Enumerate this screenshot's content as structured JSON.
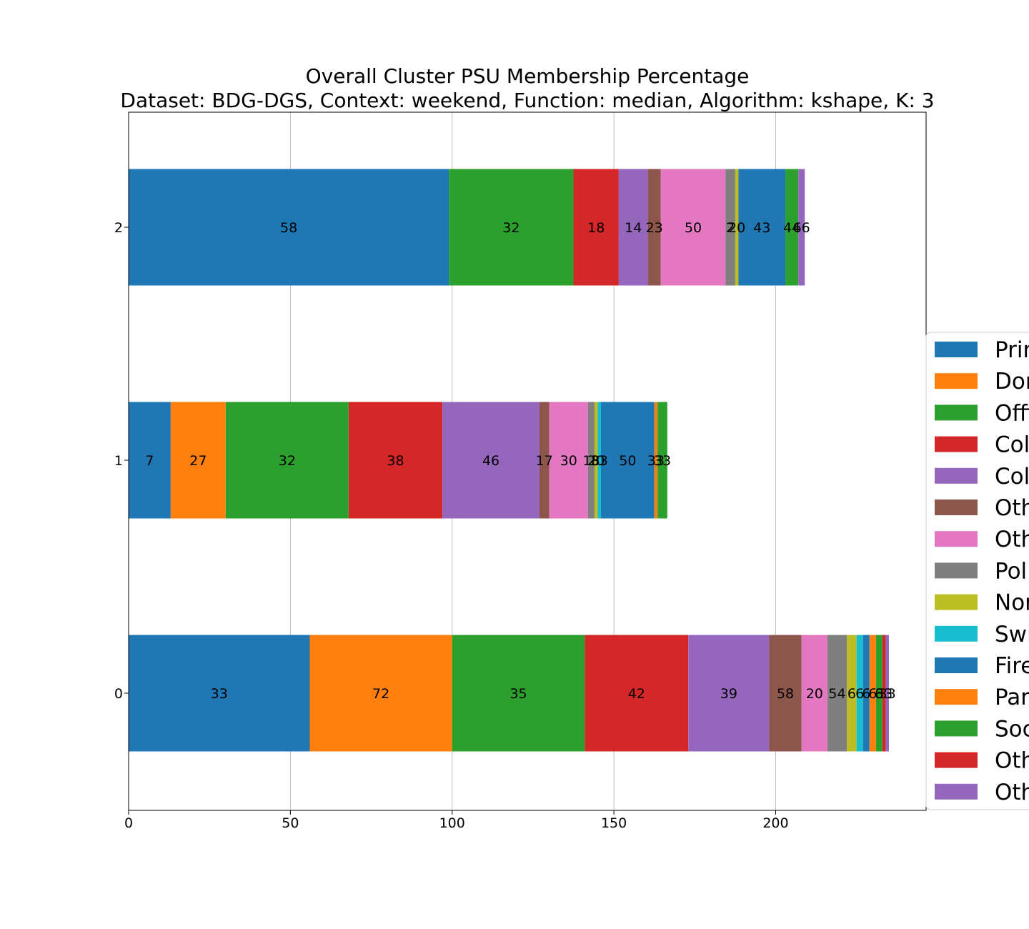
{
  "chart_data": {
    "type": "bar",
    "orientation": "horizontal",
    "stacked": true,
    "title": "Overall Cluster  PSU Membership Percentage",
    "subtitle": "Dataset: BDG-DGS, Context: weekend, Function: median, Algorithm: kshape, K: 3",
    "xlabel": "",
    "ylabel": "",
    "xlim": [
      0,
      246.5
    ],
    "x_ticks": [
      0,
      50,
      100,
      150,
      200
    ],
    "categories": [
      "0",
      "1",
      "2"
    ],
    "grid": "x",
    "legend_position": "right (clipped)",
    "series": [
      {
        "name": "Prim",
        "color": "#1f77b4",
        "values": [
          56.0,
          13.0,
          99.0
        ],
        "labels": [
          "33",
          "7",
          "58"
        ]
      },
      {
        "name": "Dor",
        "color": "#ff7f0e",
        "values": [
          44.0,
          17.0,
          0
        ],
        "labels": [
          "72",
          "27",
          ""
        ]
      },
      {
        "name": "Offi",
        "color": "#2ca02c",
        "values": [
          41.0,
          38.0,
          38.5
        ],
        "labels": [
          "35",
          "32",
          "32"
        ]
      },
      {
        "name": "Col",
        "color": "#d62728",
        "values": [
          32.0,
          29.0,
          14.0
        ],
        "labels": [
          "42",
          "38",
          "18"
        ]
      },
      {
        "name": "Col",
        "color": "#9467bd",
        "values": [
          25.0,
          30.0,
          9.0
        ],
        "labels": [
          "39",
          "46",
          "14"
        ]
      },
      {
        "name": "Oth",
        "color": "#8c564b",
        "values": [
          10.0,
          3.0,
          4.0
        ],
        "labels": [
          "58",
          "17",
          "23"
        ]
      },
      {
        "name": "Oth",
        "color": "#e377c2",
        "values": [
          8.0,
          12.0,
          20.0
        ],
        "labels": [
          "20",
          "30",
          "50"
        ]
      },
      {
        "name": "Pol",
        "color": "#7f7f7f",
        "values": [
          6.0,
          2.0,
          3.0
        ],
        "labels": [
          "54",
          "18",
          "2"
        ]
      },
      {
        "name": "Nor",
        "color": "#bcbd22",
        "values": [
          3.0,
          1.0,
          1.0
        ],
        "labels": [
          "6",
          "20",
          "20"
        ]
      },
      {
        "name": "Swi",
        "color": "#17becf",
        "values": [
          2.0,
          1.0,
          0
        ],
        "labels": [
          "6",
          "33",
          ""
        ]
      },
      {
        "name": "Fire",
        "color": "#1f77b4",
        "values": [
          2.0,
          16.5,
          14.5
        ],
        "labels": [
          "6",
          "50",
          "43"
        ]
      },
      {
        "name": "Par",
        "color": "#ff7f0e",
        "values": [
          2.0,
          1.0,
          0
        ],
        "labels": [
          "6",
          "33",
          ""
        ]
      },
      {
        "name": "Soc",
        "color": "#2ca02c",
        "values": [
          2.0,
          3.0,
          4.0
        ],
        "labels": [
          "6",
          "33",
          "44"
        ]
      },
      {
        "name": "Oth",
        "color": "#d62728",
        "values": [
          1.0,
          0,
          0
        ],
        "labels": [
          "33",
          "",
          ""
        ]
      },
      {
        "name": "Oth",
        "color": "#9467bd",
        "values": [
          1.0,
          0,
          2.0
        ],
        "labels": [
          "33",
          "",
          "66"
        ]
      }
    ]
  }
}
